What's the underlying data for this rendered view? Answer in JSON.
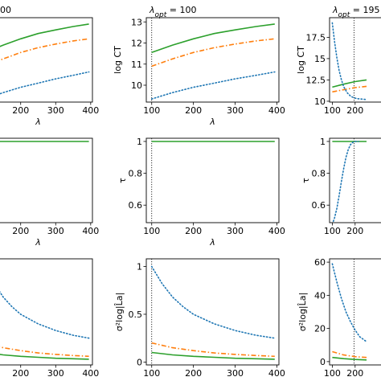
{
  "colors": {
    "green": "#2ca02c",
    "orange": "#ff7f0e",
    "blue": "#1f77b4",
    "axis": "#000000"
  },
  "chart_data": [
    {
      "id": "r0c0",
      "type": "line",
      "title": "00",
      "xlabel": "λ",
      "ylabel": "",
      "xlim": [
        95,
        405
      ],
      "ylim": [
        9.2,
        13.2
      ],
      "xticks": [
        200,
        300,
        400
      ],
      "yticks": [],
      "vline": null,
      "series": [
        {
          "style": "solid",
          "color": "green",
          "x": [
            100,
            150,
            200,
            250,
            300,
            350,
            395
          ],
          "y": [
            11.55,
            11.9,
            12.2,
            12.45,
            12.62,
            12.78,
            12.9
          ]
        },
        {
          "style": "dashdot",
          "color": "orange",
          "x": [
            100,
            150,
            200,
            250,
            300,
            350,
            395
          ],
          "y": [
            10.9,
            11.25,
            11.55,
            11.78,
            11.95,
            12.1,
            12.2
          ]
        },
        {
          "style": "dotted",
          "color": "blue",
          "x": [
            100,
            150,
            200,
            250,
            300,
            350,
            395
          ],
          "y": [
            9.35,
            9.65,
            9.9,
            10.1,
            10.3,
            10.47,
            10.63
          ]
        }
      ]
    },
    {
      "id": "r0c1",
      "type": "line",
      "title": "λ_opt = 100",
      "xlabel": "λ",
      "ylabel": "log CT",
      "xlim": [
        87,
        405
      ],
      "ylim": [
        9.2,
        13.2
      ],
      "xticks": [
        100,
        200,
        300,
        400
      ],
      "yticks": [
        10,
        11,
        12,
        13
      ],
      "vline": 100,
      "series": [
        {
          "style": "solid",
          "color": "green",
          "x": [
            100,
            150,
            200,
            250,
            300,
            350,
            395
          ],
          "y": [
            11.55,
            11.9,
            12.2,
            12.45,
            12.62,
            12.78,
            12.9
          ]
        },
        {
          "style": "dashdot",
          "color": "orange",
          "x": [
            100,
            150,
            200,
            250,
            300,
            350,
            395
          ],
          "y": [
            10.9,
            11.25,
            11.55,
            11.78,
            11.95,
            12.1,
            12.2
          ]
        },
        {
          "style": "dotted",
          "color": "blue",
          "x": [
            100,
            150,
            200,
            250,
            300,
            350,
            395
          ],
          "y": [
            9.35,
            9.65,
            9.9,
            10.1,
            10.3,
            10.47,
            10.63
          ]
        }
      ]
    },
    {
      "id": "r0c2",
      "type": "line",
      "title": "λ_opt = 195",
      "xlabel": "",
      "ylabel": "log CT",
      "xlim": [
        88,
        405
      ],
      "ylim": [
        9.9,
        19.8
      ],
      "xticks": [
        100,
        200
      ],
      "yticks": [
        10.0,
        12.5,
        15.0,
        17.5
      ],
      "vline": 195,
      "series": [
        {
          "style": "solid",
          "color": "green",
          "x": [
            100,
            150,
            200,
            250
          ],
          "y": [
            11.65,
            12.0,
            12.3,
            12.5
          ]
        },
        {
          "style": "dashdot",
          "color": "orange",
          "x": [
            100,
            150,
            200,
            250
          ],
          "y": [
            11.1,
            11.35,
            11.6,
            11.75
          ]
        },
        {
          "style": "dotted",
          "color": "blue",
          "x": [
            100,
            110,
            120,
            130,
            140,
            150,
            165,
            180,
            195,
            210,
            230,
            250
          ],
          "y": [
            19.2,
            17.0,
            15.1,
            13.6,
            12.5,
            11.7,
            11.0,
            10.6,
            10.4,
            10.3,
            10.25,
            10.2
          ]
        }
      ]
    },
    {
      "id": "r1c0",
      "type": "line",
      "title": "",
      "xlabel": "λ",
      "ylabel": "",
      "xlim": [
        95,
        405
      ],
      "ylim": [
        0.49,
        1.02
      ],
      "xticks": [
        200,
        300,
        400
      ],
      "yticks": [],
      "vline": null,
      "series": [
        {
          "style": "solid",
          "color": "green",
          "x": [
            100,
            395
          ],
          "y": [
            1.0,
            1.0
          ]
        }
      ]
    },
    {
      "id": "r1c1",
      "type": "line",
      "title": "",
      "xlabel": "λ",
      "ylabel": "τ",
      "xlim": [
        87,
        405
      ],
      "ylim": [
        0.49,
        1.02
      ],
      "xticks": [
        100,
        200,
        300,
        400
      ],
      "yticks": [
        0.6,
        0.8,
        1.0
      ],
      "vline": 100,
      "series": [
        {
          "style": "solid",
          "color": "green",
          "x": [
            100,
            395
          ],
          "y": [
            1.0,
            1.0
          ]
        }
      ]
    },
    {
      "id": "r1c2",
      "type": "line",
      "title": "",
      "xlabel": "",
      "ylabel": "τ",
      "xlim": [
        88,
        405
      ],
      "ylim": [
        0.49,
        1.02
      ],
      "xticks": [
        100,
        200
      ],
      "yticks": [
        0.6,
        0.8,
        1.0
      ],
      "vline": 195,
      "series": [
        {
          "style": "solid",
          "color": "green",
          "x": [
            100,
            250
          ],
          "y": [
            1.0,
            1.0
          ]
        },
        {
          "style": "dotted",
          "color": "blue",
          "x": [
            100,
            110,
            120,
            130,
            140,
            150,
            160,
            170,
            180,
            190,
            200,
            215
          ],
          "y": [
            0.48,
            0.52,
            0.58,
            0.66,
            0.75,
            0.83,
            0.9,
            0.95,
            0.98,
            0.995,
            1.0,
            1.0
          ]
        }
      ]
    },
    {
      "id": "r2c0",
      "type": "line",
      "title": "",
      "xlabel": "λ",
      "ylabel": "",
      "xlim": [
        95,
        405
      ],
      "ylim": [
        -0.03,
        1.08
      ],
      "xticks": [
        200,
        300,
        400
      ],
      "yticks": [],
      "vline": null,
      "series": [
        {
          "style": "solid",
          "color": "green",
          "x": [
            100,
            150,
            200,
            250,
            300,
            350,
            395
          ],
          "y": [
            0.1,
            0.075,
            0.06,
            0.05,
            0.04,
            0.035,
            0.03
          ]
        },
        {
          "style": "dashdot",
          "color": "orange",
          "x": [
            100,
            150,
            200,
            250,
            300,
            350,
            395
          ],
          "y": [
            0.2,
            0.15,
            0.12,
            0.095,
            0.08,
            0.068,
            0.06
          ]
        },
        {
          "style": "dotted",
          "color": "blue",
          "x": [
            100,
            125,
            150,
            175,
            200,
            250,
            300,
            350,
            395
          ],
          "y": [
            1.0,
            0.82,
            0.68,
            0.58,
            0.5,
            0.4,
            0.33,
            0.28,
            0.25
          ]
        }
      ]
    },
    {
      "id": "r2c1",
      "type": "line",
      "title": "",
      "xlabel": "λ",
      "ylabel": "σ²log|L̂a|",
      "xlim": [
        87,
        405
      ],
      "ylim": [
        -0.03,
        1.08
      ],
      "xticks": [
        100,
        200,
        300,
        400
      ],
      "yticks": [
        0.0,
        0.5,
        1.0
      ],
      "vline": 100,
      "series": [
        {
          "style": "solid",
          "color": "green",
          "x": [
            100,
            150,
            200,
            250,
            300,
            350,
            395
          ],
          "y": [
            0.1,
            0.075,
            0.06,
            0.05,
            0.04,
            0.035,
            0.03
          ]
        },
        {
          "style": "dashdot",
          "color": "orange",
          "x": [
            100,
            150,
            200,
            250,
            300,
            350,
            395
          ],
          "y": [
            0.2,
            0.15,
            0.12,
            0.095,
            0.08,
            0.068,
            0.06
          ]
        },
        {
          "style": "dotted",
          "color": "blue",
          "x": [
            100,
            125,
            150,
            175,
            200,
            250,
            300,
            350,
            395
          ],
          "y": [
            1.0,
            0.82,
            0.68,
            0.58,
            0.5,
            0.4,
            0.33,
            0.28,
            0.25
          ]
        }
      ]
    },
    {
      "id": "r2c2",
      "type": "line",
      "title": "",
      "xlabel": "",
      "ylabel": "σ²log|L̂a|",
      "xlim": [
        88,
        405
      ],
      "ylim": [
        -2,
        62
      ],
      "xticks": [
        100,
        200
      ],
      "yticks": [
        0,
        20,
        40,
        60
      ],
      "vline": 195,
      "series": [
        {
          "style": "solid",
          "color": "green",
          "x": [
            100,
            150,
            200,
            250
          ],
          "y": [
            2.5,
            1.8,
            1.3,
            1.0
          ]
        },
        {
          "style": "dashdot",
          "color": "orange",
          "x": [
            100,
            150,
            200,
            250
          ],
          "y": [
            6.0,
            4.0,
            3.0,
            2.5
          ]
        },
        {
          "style": "dotted",
          "color": "blue",
          "x": [
            100,
            120,
            140,
            160,
            180,
            200,
            220,
            250
          ],
          "y": [
            59,
            48,
            38,
            30,
            24,
            19,
            15,
            12
          ]
        }
      ]
    }
  ]
}
